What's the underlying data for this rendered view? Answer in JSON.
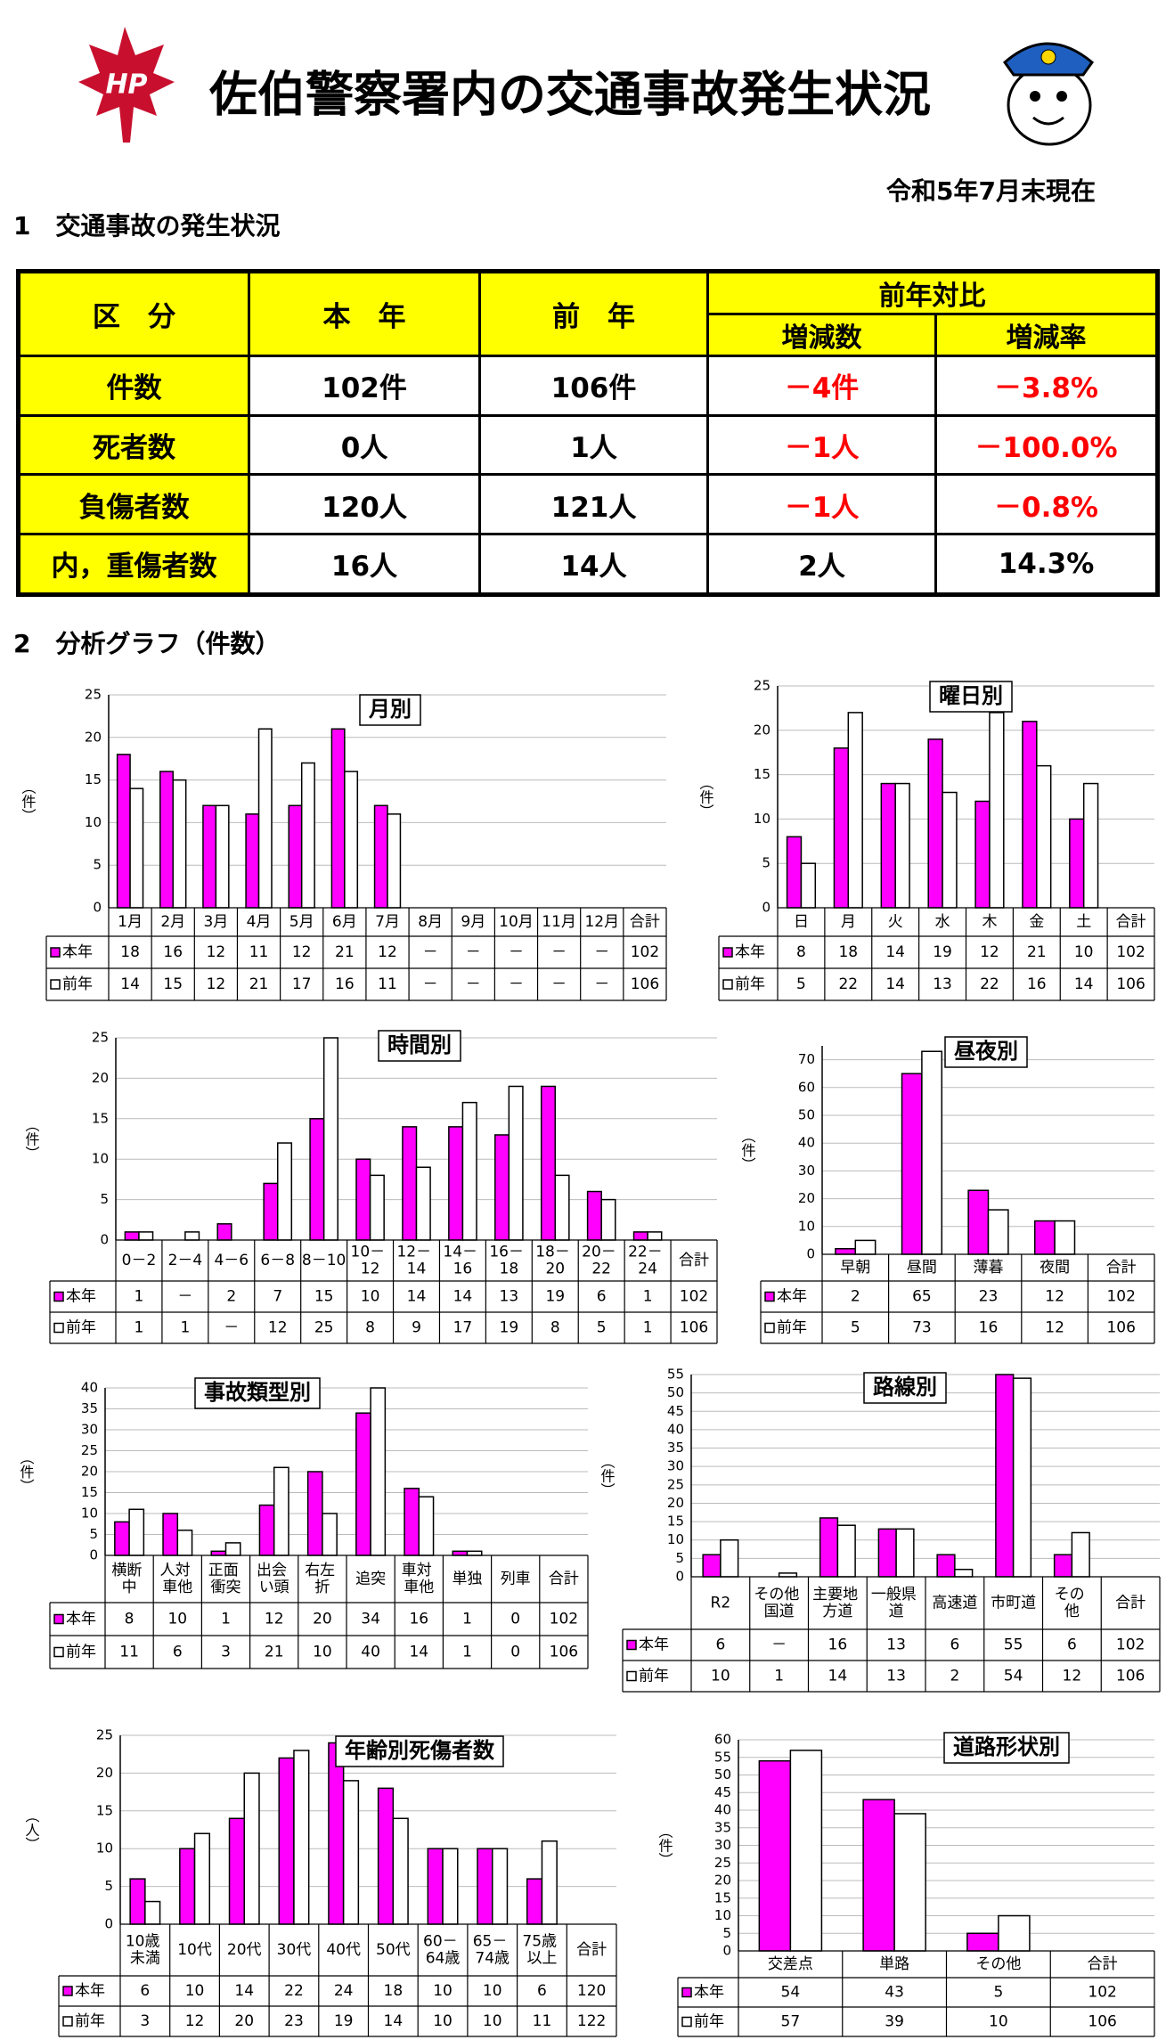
{
  "header": {
    "title": "佐伯警察署内の交通事故発生状況",
    "logo_text": "HP",
    "date": "令和5年7月末現在"
  },
  "section1": {
    "heading": "1　交通事故の発生状況"
  },
  "summary_table": {
    "header": {
      "category": "区　分",
      "this_year": "本　年",
      "last_year": "前　年",
      "comparison": "前年対比",
      "change": "増減数",
      "rate": "増減率"
    },
    "rows": [
      [
        "件数",
        "102件",
        "106件",
        "－4件",
        "－3.8%"
      ],
      [
        "死者数",
        "0人",
        "1人",
        "－1人",
        "－100.0%"
      ],
      [
        "負傷者数",
        "120人",
        "121人",
        "－1人",
        "－0.8%"
      ],
      [
        "内，重傷者数",
        "16人",
        "14人",
        "2人",
        "14.3%"
      ]
    ]
  },
  "section2": {
    "heading": "2　分析グラフ（件数）"
  },
  "chart_data": [
    {
      "type": "bar",
      "title": "月別",
      "y_label": "（件）",
      "grid": true,
      "categories": [
        "1月",
        "2月",
        "3月",
        "4月",
        "5月",
        "6月",
        "7月",
        "8月",
        "9月",
        "10月",
        "11月",
        "12月"
      ],
      "total_label": "合計",
      "ylim": [
        0,
        25
      ],
      "yticks": [
        0,
        5,
        10,
        15,
        20,
        25
      ],
      "series": [
        {
          "name": "本年",
          "color": "#ff00ff",
          "values": [
            18,
            16,
            12,
            11,
            12,
            21,
            12,
            null,
            null,
            null,
            null,
            null
          ],
          "value_labels": [
            null,
            null,
            null,
            null,
            null,
            null,
            null,
            "－",
            "－",
            "－",
            "－",
            "－"
          ],
          "total": 102
        },
        {
          "name": "前年",
          "color": "#ffffff",
          "values": [
            14,
            15,
            12,
            21,
            17,
            16,
            11,
            null,
            null,
            null,
            null,
            null
          ],
          "value_labels": [
            null,
            null,
            null,
            null,
            null,
            null,
            null,
            "－",
            "－",
            "－",
            "－",
            "－"
          ],
          "total": 106
        }
      ]
    },
    {
      "type": "bar",
      "title": "曜日別",
      "y_label": "（件）",
      "grid": true,
      "categories": [
        "日",
        "月",
        "火",
        "水",
        "木",
        "金",
        "土"
      ],
      "total_label": "合計",
      "ylim": [
        0,
        25
      ],
      "yticks": [
        0,
        5,
        10,
        15,
        20,
        25
      ],
      "series": [
        {
          "name": "本年",
          "color": "#ff00ff",
          "values": [
            8,
            18,
            14,
            19,
            12,
            21,
            10
          ],
          "total": 102
        },
        {
          "name": "前年",
          "color": "#ffffff",
          "values": [
            5,
            22,
            14,
            13,
            22,
            16,
            14
          ],
          "total": 106
        }
      ]
    },
    {
      "type": "bar",
      "title": "時間別",
      "y_label": "（件）",
      "grid": true,
      "categories": [
        "0－2",
        "2－4",
        "4－6",
        "6－8",
        "8－10",
        "10－\n12",
        "12－\n14",
        "14－\n16",
        "16－\n18",
        "18－\n20",
        "20－\n22",
        "22－\n24"
      ],
      "total_label": "合計",
      "ylim": [
        0,
        25
      ],
      "yticks": [
        0,
        5,
        10,
        15,
        20,
        25
      ],
      "series": [
        {
          "name": "本年",
          "color": "#ff00ff",
          "values": [
            1,
            null,
            2,
            7,
            15,
            10,
            14,
            14,
            13,
            19,
            6,
            1
          ],
          "value_labels": [
            null,
            "－",
            null,
            null,
            null,
            null,
            null,
            null,
            null,
            null,
            null,
            null
          ],
          "total": 102
        },
        {
          "name": "前年",
          "color": "#ffffff",
          "values": [
            1,
            1,
            null,
            12,
            25,
            8,
            9,
            17,
            19,
            8,
            5,
            1
          ],
          "value_labels": [
            null,
            null,
            "－",
            null,
            null,
            null,
            null,
            null,
            null,
            null,
            null,
            null
          ],
          "total": 106
        }
      ]
    },
    {
      "type": "bar",
      "title": "昼夜別",
      "y_label": "（件）",
      "grid": true,
      "categories": [
        "早朝",
        "昼間",
        "薄暮",
        "夜間"
      ],
      "total_label": "合計",
      "ylim": [
        0,
        75
      ],
      "yticks": [
        0,
        10,
        20,
        30,
        40,
        50,
        60,
        70
      ],
      "series": [
        {
          "name": "本年",
          "color": "#ff00ff",
          "values": [
            2,
            65,
            23,
            12
          ],
          "total": 102
        },
        {
          "name": "前年",
          "color": "#ffffff",
          "values": [
            5,
            73,
            16,
            12
          ],
          "total": 106
        }
      ]
    },
    {
      "type": "bar",
      "title": "事故類型別",
      "y_label": "（件）",
      "grid": true,
      "categories": [
        "横断\n中",
        "人対\n車他",
        "正面\n衝突",
        "出会\nい頭",
        "右左\n折",
        "追突",
        "車対\n車他",
        "単独",
        "列車"
      ],
      "total_label": "合計",
      "ylim": [
        0,
        40
      ],
      "yticks": [
        0,
        5,
        10,
        15,
        20,
        25,
        30,
        35,
        40
      ],
      "series": [
        {
          "name": "本年",
          "color": "#ff00ff",
          "values": [
            8,
            10,
            1,
            12,
            20,
            34,
            16,
            1,
            0
          ],
          "total": 102
        },
        {
          "name": "前年",
          "color": "#ffffff",
          "values": [
            11,
            6,
            3,
            21,
            10,
            40,
            14,
            1,
            0
          ],
          "total": 106
        }
      ]
    },
    {
      "type": "bar",
      "title": "路線別",
      "y_label": "（件）",
      "grid": true,
      "categories": [
        "R2",
        "その他\n国道",
        "主要地\n方道",
        "一般県\n道",
        "高速道",
        "市町道",
        "その\n他"
      ],
      "total_label": "合計",
      "ylim": [
        0,
        55
      ],
      "yticks": [
        0,
        5,
        10,
        15,
        20,
        25,
        30,
        35,
        40,
        45,
        50,
        55
      ],
      "series": [
        {
          "name": "本年",
          "color": "#ff00ff",
          "values": [
            6,
            null,
            16,
            13,
            6,
            55,
            6
          ],
          "value_labels": [
            null,
            "－",
            null,
            null,
            null,
            null,
            null
          ],
          "total": 102
        },
        {
          "name": "前年",
          "color": "#ffffff",
          "values": [
            10,
            1,
            14,
            13,
            2,
            54,
            12
          ],
          "total": 106
        }
      ]
    },
    {
      "type": "bar",
      "title": "年齢別死傷者数",
      "y_label": "（人）",
      "grid": true,
      "categories": [
        "10歳\n未満",
        "10代",
        "20代",
        "30代",
        "40代",
        "50代",
        "60－\n64歳",
        "65－\n74歳",
        "75歳\n以上"
      ],
      "total_label": "合計",
      "ylim": [
        0,
        25
      ],
      "yticks": [
        0,
        5,
        10,
        15,
        20,
        25
      ],
      "series": [
        {
          "name": "本年",
          "color": "#ff00ff",
          "values": [
            6,
            10,
            14,
            22,
            24,
            18,
            10,
            10,
            6
          ],
          "total": 120
        },
        {
          "name": "前年",
          "color": "#ffffff",
          "values": [
            3,
            12,
            20,
            23,
            19,
            14,
            10,
            10,
            11
          ],
          "total": 122
        }
      ]
    },
    {
      "type": "bar",
      "title": "道路形状別",
      "y_label": "（件）",
      "grid": true,
      "categories": [
        "交差点",
        "単路",
        "その他"
      ],
      "total_label": "合計",
      "ylim": [
        0,
        60
      ],
      "yticks": [
        0,
        5,
        10,
        15,
        20,
        25,
        30,
        35,
        40,
        45,
        50,
        55,
        60
      ],
      "series": [
        {
          "name": "本年",
          "color": "#ff00ff",
          "values": [
            54,
            43,
            5
          ],
          "total": 102
        },
        {
          "name": "前年",
          "color": "#ffffff",
          "values": [
            57,
            39,
            10
          ],
          "total": 106
        }
      ]
    }
  ]
}
